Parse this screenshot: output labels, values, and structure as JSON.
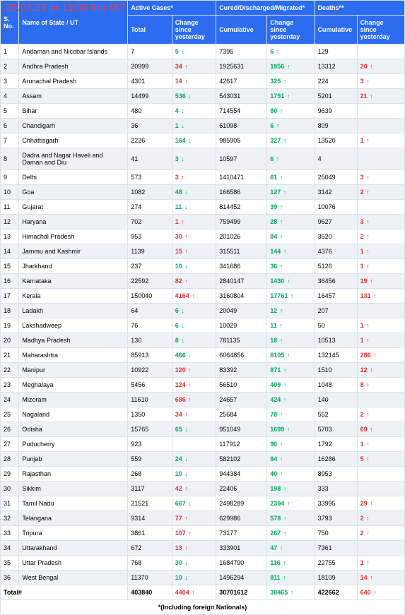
{
  "watermark": "29.07.21 at 11:00 hrs IST",
  "headers": {
    "sno": "S. No.",
    "name": "Name of State / UT",
    "active_group": "Active Cases*",
    "cured_group": "Cured/Discharged/Migrated*",
    "deaths_group": "Deaths**",
    "total": "Total",
    "change": "Change since yesterday",
    "cumulative": "Cumulative"
  },
  "footnote": "*(Including foreign Nationals)",
  "total_label": "Total#",
  "total_row": {
    "active_total": "403840",
    "active_change": "4404",
    "active_dir": "up-red",
    "cured_cum": "30701612",
    "cured_change": "38465",
    "cured_dir": "up-green",
    "deaths_cum": "422662",
    "deaths_change": "640",
    "deaths_dir": "up-red"
  },
  "rows": [
    {
      "n": "1",
      "name": "Andaman and Nicobar Islands",
      "at": "7",
      "ac": "5",
      "ad": "down-green",
      "cc": "7395",
      "cchg": "6",
      "cd": "up-green",
      "dc": "129",
      "dchg": "",
      "dd": ""
    },
    {
      "n": "2",
      "name": "Andhra Pradesh",
      "at": "20999",
      "ac": "34",
      "ad": "up-red",
      "cc": "1925631",
      "cchg": "1956",
      "cd": "up-green",
      "dc": "13312",
      "dchg": "20",
      "dd": "up-red"
    },
    {
      "n": "3",
      "name": "Arunachal Pradesh",
      "at": "4301",
      "ac": "14",
      "ad": "up-red",
      "cc": "42617",
      "cchg": "325",
      "cd": "up-green",
      "dc": "224",
      "dchg": "3",
      "dd": "up-red"
    },
    {
      "n": "4",
      "name": "Assam",
      "at": "14499",
      "ac": "536",
      "ad": "down-green",
      "cc": "543031",
      "cchg": "1791",
      "cd": "up-green",
      "dc": "5201",
      "dchg": "21",
      "dd": "up-red"
    },
    {
      "n": "5",
      "name": "Bihar",
      "at": "480",
      "ac": "4",
      "ad": "down-green",
      "cc": "714554",
      "cchg": "80",
      "cd": "up-green",
      "dc": "9639",
      "dchg": "",
      "dd": ""
    },
    {
      "n": "6",
      "name": "Chandigarh",
      "at": "36",
      "ac": "1",
      "ad": "down-green",
      "cc": "61098",
      "cchg": "6",
      "cd": "up-green",
      "dc": "809",
      "dchg": "",
      "dd": ""
    },
    {
      "n": "7",
      "name": "Chhattisgarh",
      "at": "2226",
      "ac": "164",
      "ad": "down-green",
      "cc": "985905",
      "cchg": "327",
      "cd": "up-green",
      "dc": "13520",
      "dchg": "1",
      "dd": "up-red"
    },
    {
      "n": "8",
      "name": "Dadra and Nagar Haveli and Daman and Diu",
      "at": "41",
      "ac": "3",
      "ad": "down-green",
      "cc": "10597",
      "cchg": "6",
      "cd": "up-green",
      "dc": "4",
      "dchg": "",
      "dd": ""
    },
    {
      "n": "9",
      "name": "Delhi",
      "at": "573",
      "ac": "3",
      "ad": "up-red",
      "cc": "1410471",
      "cchg": "61",
      "cd": "up-green",
      "dc": "25049",
      "dchg": "3",
      "dd": "up-red"
    },
    {
      "n": "10",
      "name": "Goa",
      "at": "1082",
      "ac": "48",
      "ad": "down-green",
      "cc": "166586",
      "cchg": "127",
      "cd": "up-green",
      "dc": "3142",
      "dchg": "2",
      "dd": "up-red"
    },
    {
      "n": "11",
      "name": "Gujarat",
      "at": "274",
      "ac": "11",
      "ad": "down-green",
      "cc": "814452",
      "cchg": "39",
      "cd": "up-green",
      "dc": "10076",
      "dchg": "",
      "dd": ""
    },
    {
      "n": "12",
      "name": "Haryana",
      "at": "702",
      "ac": "1",
      "ad": "up-red",
      "cc": "759499",
      "cchg": "28",
      "cd": "up-green",
      "dc": "9627",
      "dchg": "3",
      "dd": "up-red"
    },
    {
      "n": "13",
      "name": "Himachal Pradesh",
      "at": "953",
      "ac": "30",
      "ad": "up-red",
      "cc": "201026",
      "cchg": "84",
      "cd": "up-green",
      "dc": "3520",
      "dchg": "2",
      "dd": "up-red"
    },
    {
      "n": "14",
      "name": "Jammu and Kashmir",
      "at": "1139",
      "ac": "15",
      "ad": "up-red",
      "cc": "315511",
      "cchg": "144",
      "cd": "up-green",
      "dc": "4376",
      "dchg": "1",
      "dd": "up-red"
    },
    {
      "n": "15",
      "name": "Jharkhand",
      "at": "237",
      "ac": "10",
      "ad": "down-green",
      "cc": "341686",
      "cchg": "36",
      "cd": "up-green",
      "dc": "5126",
      "dchg": "1",
      "dd": "up-red"
    },
    {
      "n": "16",
      "name": "Karnataka",
      "at": "22592",
      "ac": "82",
      "ad": "up-red",
      "cc": "2840147",
      "cchg": "1430",
      "cd": "up-green",
      "dc": "36456",
      "dchg": "19",
      "dd": "up-red"
    },
    {
      "n": "17",
      "name": "Kerala",
      "at": "150040",
      "ac": "4164",
      "ad": "up-red",
      "cc": "3160804",
      "cchg": "17761",
      "cd": "up-green",
      "dc": "16457",
      "dchg": "131",
      "dd": "up-red"
    },
    {
      "n": "18",
      "name": "Ladakh",
      "at": "64",
      "ac": "6",
      "ad": "down-green",
      "cc": "20049",
      "cchg": "12",
      "cd": "up-green",
      "dc": "207",
      "dchg": "",
      "dd": ""
    },
    {
      "n": "19",
      "name": "Lakshadweep",
      "at": "76",
      "ac": "6",
      "ad": "down-green",
      "cc": "10029",
      "cchg": "11",
      "cd": "up-green",
      "dc": "50",
      "dchg": "1",
      "dd": "up-red"
    },
    {
      "n": "20",
      "name": "Madhya Pradesh",
      "at": "130",
      "ac": "8",
      "ad": "down-green",
      "cc": "781135",
      "cchg": "18",
      "cd": "up-green",
      "dc": "10513",
      "dchg": "1",
      "dd": "up-red"
    },
    {
      "n": "21",
      "name": "Maharashtra",
      "at": "85913",
      "ac": "466",
      "ad": "down-green",
      "cc": "6064856",
      "cchg": "6105",
      "cd": "up-green",
      "dc": "132145",
      "dchg": "286",
      "dd": "up-red"
    },
    {
      "n": "22",
      "name": "Manipur",
      "at": "10922",
      "ac": "120",
      "ad": "up-red",
      "cc": "83392",
      "cchg": "871",
      "cd": "up-green",
      "dc": "1510",
      "dchg": "12",
      "dd": "up-red"
    },
    {
      "n": "23",
      "name": "Meghalaya",
      "at": "5456",
      "ac": "124",
      "ad": "up-red",
      "cc": "56510",
      "cchg": "409",
      "cd": "up-green",
      "dc": "1048",
      "dchg": "8",
      "dd": "up-red"
    },
    {
      "n": "24",
      "name": "Mizoram",
      "at": "11610",
      "ac": "686",
      "ad": "up-red",
      "cc": "24657",
      "cchg": "424",
      "cd": "up-green",
      "dc": "140",
      "dchg": "",
      "dd": ""
    },
    {
      "n": "25",
      "name": "Nagaland",
      "at": "1350",
      "ac": "34",
      "ad": "up-red",
      "cc": "25684",
      "cchg": "78",
      "cd": "up-green",
      "dc": "552",
      "dchg": "2",
      "dd": "up-red"
    },
    {
      "n": "26",
      "name": "Odisha",
      "at": "15765",
      "ac": "65",
      "ad": "down-green",
      "cc": "951049",
      "cchg": "1699",
      "cd": "up-green",
      "dc": "5703",
      "dchg": "69",
      "dd": "up-red"
    },
    {
      "n": "27",
      "name": "Puducherry",
      "at": "923",
      "ac": "",
      "ad": "",
      "cc": "117912",
      "cchg": "96",
      "cd": "up-green",
      "dc": "1792",
      "dchg": "1",
      "dd": "up-red"
    },
    {
      "n": "28",
      "name": "Punjab",
      "at": "559",
      "ac": "24",
      "ad": "down-green",
      "cc": "582102",
      "cchg": "84",
      "cd": "up-green",
      "dc": "16286",
      "dchg": "5",
      "dd": "up-red"
    },
    {
      "n": "29",
      "name": "Rajasthan",
      "at": "268",
      "ac": "10",
      "ad": "down-green",
      "cc": "944384",
      "cchg": "40",
      "cd": "up-green",
      "dc": "8953",
      "dchg": "",
      "dd": ""
    },
    {
      "n": "30",
      "name": "Sikkim",
      "at": "3117",
      "ac": "42",
      "ad": "up-red",
      "cc": "22406",
      "cchg": "198",
      "cd": "up-green",
      "dc": "333",
      "dchg": "",
      "dd": ""
    },
    {
      "n": "31",
      "name": "Tamil Nadu",
      "at": "21521",
      "ac": "667",
      "ad": "down-green",
      "cc": "2498289",
      "cchg": "2394",
      "cd": "up-green",
      "dc": "33995",
      "dchg": "29",
      "dd": "up-red"
    },
    {
      "n": "32",
      "name": "Telangana",
      "at": "9314",
      "ac": "77",
      "ad": "up-red",
      "cc": "629986",
      "cchg": "578",
      "cd": "up-green",
      "dc": "3793",
      "dchg": "2",
      "dd": "up-red"
    },
    {
      "n": "33",
      "name": "Tripura",
      "at": "3861",
      "ac": "107",
      "ad": "up-red",
      "cc": "73177",
      "cchg": "267",
      "cd": "up-green",
      "dc": "750",
      "dchg": "2",
      "dd": "up-red"
    },
    {
      "n": "34",
      "name": "Uttarakhand",
      "at": "672",
      "ac": "13",
      "ad": "up-red",
      "cc": "333901",
      "cchg": "47",
      "cd": "up-green",
      "dc": "7361",
      "dchg": "",
      "dd": ""
    },
    {
      "n": "35",
      "name": "Uttar Pradesh",
      "at": "768",
      "ac": "30",
      "ad": "down-green",
      "cc": "1684790",
      "cchg": "116",
      "cd": "up-green",
      "dc": "22755",
      "dchg": "1",
      "dd": "up-red"
    },
    {
      "n": "36",
      "name": "West Bengal",
      "at": "11370",
      "ac": "10",
      "ad": "down-green",
      "cc": "1496294",
      "cchg": "811",
      "cd": "up-green",
      "dc": "18109",
      "dchg": "14",
      "dd": "up-red"
    }
  ]
}
